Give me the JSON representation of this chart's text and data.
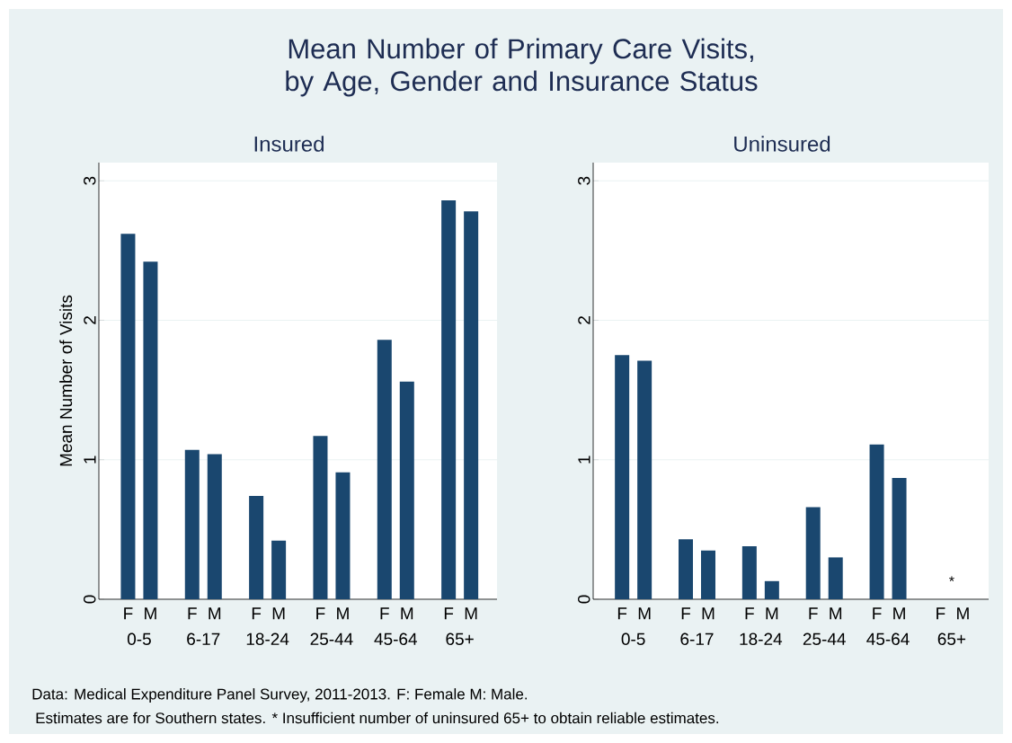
{
  "chart_data": [
    {
      "type": "bar",
      "title": "Mean Number of Primary Care Visits, by Age, Gender and Insurance Status",
      "subtitle": "Insured",
      "ylabel": "Mean Number of Visits",
      "categories": [
        "0-5",
        "6-17",
        "18-24",
        "25-44",
        "45-64",
        "65+"
      ],
      "series": [
        {
          "name": "F",
          "color": "#1a476f",
          "values": [
            2.62,
            1.07,
            0.74,
            1.17,
            1.86,
            2.86
          ]
        },
        {
          "name": "M",
          "color": "#1a476f",
          "values": [
            2.42,
            1.04,
            0.42,
            0.91,
            1.56,
            2.78
          ]
        }
      ],
      "ylim": [
        0,
        3.13
      ],
      "yticks": [
        0,
        1,
        2,
        3
      ],
      "grid": "y",
      "annotations": [
        "Data: Medical Expenditure Panel Survey, 2011-2013.  F: Female M: Male.",
        "Estimates are for Southern states.  * Insufficient number of uninsured 65+ to obtain reliable estimates."
      ]
    },
    {
      "type": "bar",
      "subtitle": "Uninsured",
      "categories": [
        "0-5",
        "6-17",
        "18-24",
        "25-44",
        "45-64",
        "65+"
      ],
      "series": [
        {
          "name": "F",
          "color": "#1a476f",
          "values": [
            1.75,
            0.43,
            0.38,
            0.66,
            1.11,
            null
          ]
        },
        {
          "name": "M",
          "color": "#1a476f",
          "values": [
            1.71,
            0.35,
            0.13,
            0.3,
            0.87,
            null
          ]
        }
      ],
      "ylim": [
        0,
        3.13
      ],
      "yticks": [
        0,
        1,
        2,
        3
      ],
      "grid": "y",
      "annotations": [
        "*"
      ]
    }
  ]
}
